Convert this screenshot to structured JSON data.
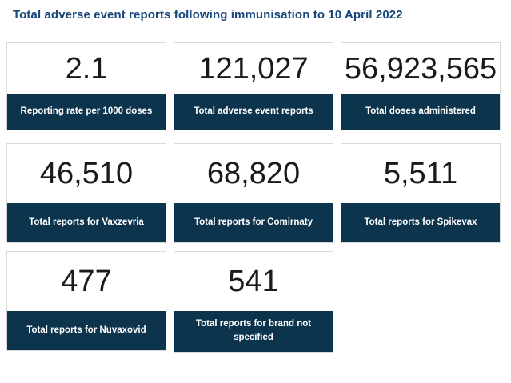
{
  "page": {
    "title": "Total adverse event reports following immunisation to 10 April 2022"
  },
  "colors": {
    "title_blue": "#17477c",
    "tile_footer_navy": "#0d344d",
    "tile_border_gray": "#d9d9d9",
    "number_text": "#1a1a1a",
    "label_text": "#ffffff"
  },
  "tiles": [
    {
      "value": "2.1",
      "label": "Reporting rate per 1000 doses"
    },
    {
      "value": "121,027",
      "label": "Total adverse event reports"
    },
    {
      "value": "56,923,565",
      "label": "Total doses administered"
    },
    {
      "value": "46,510",
      "label": "Total reports for Vaxzevria"
    },
    {
      "value": "68,820",
      "label": "Total reports for Comirnaty"
    },
    {
      "value": "5,511",
      "label": "Total reports for Spikevax"
    },
    {
      "value": "477",
      "label": "Total reports for Nuvaxovid"
    },
    {
      "value": "541",
      "label": "Total reports for brand not specified"
    }
  ],
  "chart_data": {
    "type": "table",
    "title": "Total adverse event reports following immunisation to 10 April 2022",
    "categories": [
      "Reporting rate per 1000 doses",
      "Total adverse event reports",
      "Total doses administered",
      "Total reports for Vaxzevria",
      "Total reports for Comirnaty",
      "Total reports for Spikevax",
      "Total reports for Nuvaxovid",
      "Total reports for brand not specified"
    ],
    "values": [
      2.1,
      121027,
      56923565,
      46510,
      68820,
      5511,
      477,
      541
    ]
  }
}
